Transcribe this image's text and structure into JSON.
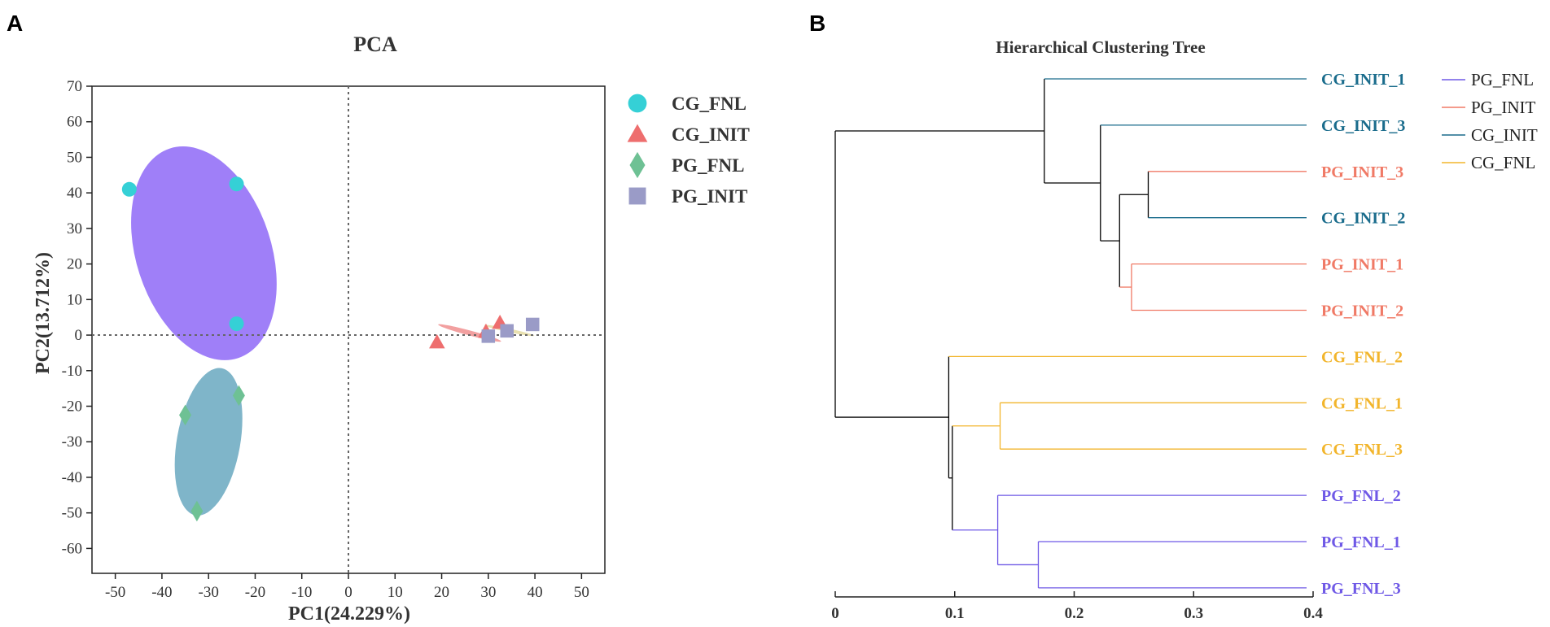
{
  "panels": {
    "a_label": "A",
    "b_label": "B"
  },
  "chart_data": [
    {
      "type": "scatter",
      "title": "PCA",
      "xlabel": "PC1(24.229%)",
      "ylabel": "PC2(13.712%)",
      "xlim": [
        -55,
        55
      ],
      "ylim": [
        -67,
        70
      ],
      "xticks": [
        -50,
        -40,
        -30,
        -20,
        -10,
        0,
        10,
        20,
        30,
        40,
        50
      ],
      "yticks": [
        70,
        60,
        50,
        40,
        30,
        20,
        10,
        0,
        -10,
        -20,
        -30,
        -40,
        -50,
        -60
      ],
      "reference_lines": {
        "x": 0,
        "y": 0
      },
      "series": [
        {
          "name": "CG_FNL",
          "marker": "circle",
          "color": "#35d0d6",
          "points": [
            [
              -47,
              41
            ],
            [
              -24,
              42.5
            ],
            [
              -24,
              3.2
            ]
          ],
          "ellipse": {
            "center": [
              -31,
              23
            ],
            "semi_axes": [
              14.5,
              31
            ],
            "rotation_deg": -18,
            "color": "#9f7ff8"
          }
        },
        {
          "name": "CG_INIT",
          "marker": "triangle",
          "color": "#ee6e6e",
          "points": [
            [
              19,
              -2
            ],
            [
              29.5,
              1
            ],
            [
              32.5,
              3.5
            ]
          ],
          "ellipse": {
            "center": [
              26,
              0.6
            ],
            "semi_axes": [
              7,
              0.7
            ],
            "rotation_deg": 15,
            "color": "#f2a0a0"
          }
        },
        {
          "name": "PG_FNL",
          "marker": "diamond",
          "color": "#6ec194",
          "points": [
            [
              -35,
              -22.5
            ],
            [
              -32.5,
              -49.5
            ],
            [
              -23.5,
              -17
            ]
          ],
          "ellipse": {
            "center": [
              -30,
              -30
            ],
            "semi_axes": [
              6.8,
              21
            ],
            "rotation_deg": 10,
            "color": "#7fb5c9"
          }
        },
        {
          "name": "PG_INIT",
          "marker": "square",
          "color": "#9a9bc7",
          "points": [
            [
              30,
              -0.3
            ],
            [
              34,
              1.2
            ],
            [
              39.5,
              3
            ]
          ],
          "ellipse": {
            "center": [
              34.5,
              1.3
            ],
            "semi_axes": [
              5.5,
              0.5
            ],
            "rotation_deg": 12,
            "color": "#e8e0b0"
          }
        }
      ]
    },
    {
      "type": "dendrogram",
      "title": "Hierarchical Clustering Tree",
      "xlim": [
        0,
        0.4
      ],
      "xticks": [
        0,
        0.1,
        0.2,
        0.3,
        0.4
      ],
      "tick_labels": [
        "0",
        "0.1",
        "0.2",
        "0.3",
        "0.4"
      ],
      "leaves": [
        {
          "label": "CG_INIT_1",
          "group": "CG_INIT"
        },
        {
          "label": "CG_INIT_3",
          "group": "CG_INIT"
        },
        {
          "label": "PG_INIT_3",
          "group": "PG_INIT"
        },
        {
          "label": "CG_INIT_2",
          "group": "CG_INIT"
        },
        {
          "label": "PG_INIT_1",
          "group": "PG_INIT"
        },
        {
          "label": "PG_INIT_2",
          "group": "PG_INIT"
        },
        {
          "label": "CG_FNL_2",
          "group": "CG_FNL"
        },
        {
          "label": "CG_FNL_1",
          "group": "CG_FNL"
        },
        {
          "label": "CG_FNL_3",
          "group": "CG_FNL"
        },
        {
          "label": "PG_FNL_2",
          "group": "PG_FNL"
        },
        {
          "label": "PG_FNL_1",
          "group": "PG_FNL"
        },
        {
          "label": "PG_FNL_3",
          "group": "PG_FNL"
        }
      ],
      "merges": [
        {
          "id": "n1",
          "children": [
            "L2",
            "L3"
          ],
          "height": 0.262
        },
        {
          "id": "n2",
          "children": [
            "L4",
            "L5"
          ],
          "height": 0.248
        },
        {
          "id": "n3",
          "children": [
            "n1",
            "n2"
          ],
          "height": 0.238
        },
        {
          "id": "n4",
          "children": [
            "L1",
            "n3"
          ],
          "height": 0.222
        },
        {
          "id": "n5",
          "children": [
            "L0",
            "n4"
          ],
          "height": 0.175
        },
        {
          "id": "n6",
          "children": [
            "L7",
            "L8"
          ],
          "height": 0.138
        },
        {
          "id": "n7",
          "children": [
            "L10",
            "L11"
          ],
          "height": 0.17
        },
        {
          "id": "n8",
          "children": [
            "L9",
            "n7"
          ],
          "height": 0.136
        },
        {
          "id": "n9",
          "children": [
            "n6",
            "n8"
          ],
          "height": 0.098
        },
        {
          "id": "n10",
          "children": [
            "L6",
            "n9"
          ],
          "height": 0.095
        },
        {
          "id": "root",
          "children": [
            "n5",
            "n10"
          ],
          "height": 0.0
        }
      ],
      "group_colors": {
        "PG_FNL": "#6f59e6",
        "PG_INIT": "#f07a66",
        "CG_INIT": "#1a6c8c",
        "CG_FNL": "#f2b52c"
      },
      "legend": [
        "PG_FNL",
        "PG_INIT",
        "CG_INIT",
        "CG_FNL"
      ]
    }
  ]
}
